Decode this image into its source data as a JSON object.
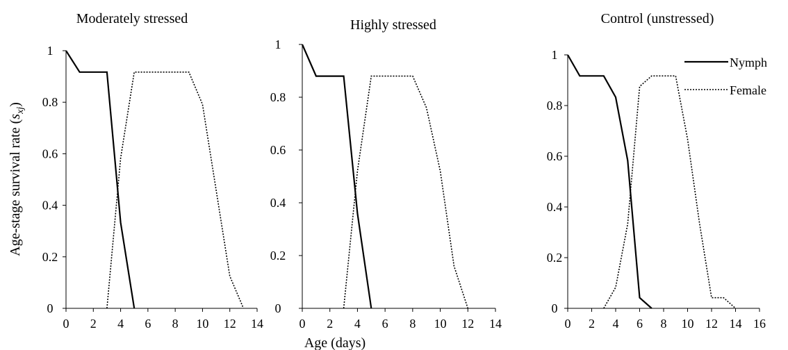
{
  "figure": {
    "y_axis_label": "Age-stage survival rate (",
    "y_axis_label_var": "s",
    "y_axis_label_sub": "xj",
    "y_axis_label_close": ")",
    "x_axis_label": "Age (days)",
    "legend": {
      "nymph": "Nymph",
      "female": "Female",
      "placement": "top-right of third panel"
    }
  },
  "chart_data": [
    {
      "type": "line",
      "title": "Moderately stressed",
      "xlim": [
        0,
        14
      ],
      "ylim": [
        0,
        1
      ],
      "x_ticks": [
        "0",
        "2",
        "4",
        "6",
        "8",
        "10",
        "12",
        "14"
      ],
      "y_ticks": [
        "0",
        "0.2",
        "0.4",
        "0.6",
        "0.8",
        "1"
      ],
      "series": [
        {
          "name": "Nymph",
          "style": "solid",
          "x": [
            0,
            1,
            2,
            3,
            4,
            5
          ],
          "y": [
            1,
            0.917,
            0.917,
            0.917,
            0.333,
            0
          ]
        },
        {
          "name": "Female",
          "style": "dotted",
          "x": [
            3,
            4,
            5,
            6,
            7,
            8,
            9,
            10,
            11,
            12,
            13
          ],
          "y": [
            0,
            0.583,
            0.917,
            0.917,
            0.917,
            0.917,
            0.917,
            0.792,
            0.458,
            0.125,
            0
          ]
        }
      ]
    },
    {
      "type": "line",
      "title": "Highly stressed",
      "xlim": [
        0,
        14
      ],
      "ylim": [
        0,
        1
      ],
      "x_ticks": [
        "0",
        "2",
        "4",
        "6",
        "8",
        "10",
        "12",
        "14"
      ],
      "y_ticks": [
        "0",
        "0.2",
        "0.4",
        "0.6",
        "0.8",
        "1"
      ],
      "series": [
        {
          "name": "Nymph",
          "style": "solid",
          "x": [
            0,
            1,
            2,
            3,
            4,
            5
          ],
          "y": [
            1,
            0.88,
            0.88,
            0.88,
            0.36,
            0
          ]
        },
        {
          "name": "Female",
          "style": "dotted",
          "x": [
            3,
            4,
            5,
            6,
            7,
            8,
            9,
            10,
            11,
            12
          ],
          "y": [
            0,
            0.52,
            0.88,
            0.88,
            0.88,
            0.88,
            0.76,
            0.52,
            0.16,
            0
          ]
        }
      ]
    },
    {
      "type": "line",
      "title": "Control (unstressed)",
      "xlim": [
        0,
        16
      ],
      "ylim": [
        0,
        1
      ],
      "x_ticks": [
        "0",
        "2",
        "4",
        "6",
        "8",
        "10",
        "12",
        "14",
        "16"
      ],
      "y_ticks": [
        "0",
        "0.2",
        "0.4",
        "0.6",
        "0.8",
        "1"
      ],
      "series": [
        {
          "name": "Nymph",
          "style": "solid",
          "x": [
            0,
            1,
            2,
            3,
            4,
            5,
            6,
            7
          ],
          "y": [
            1,
            0.917,
            0.917,
            0.917,
            0.833,
            0.583,
            0.042,
            0
          ]
        },
        {
          "name": "Female",
          "style": "dotted",
          "x": [
            3,
            4,
            5,
            6,
            7,
            8,
            9,
            10,
            11,
            12,
            13,
            14
          ],
          "y": [
            0,
            0.083,
            0.333,
            0.875,
            0.917,
            0.917,
            0.917,
            0.667,
            0.333,
            0.042,
            0.042,
            0
          ]
        }
      ]
    }
  ]
}
